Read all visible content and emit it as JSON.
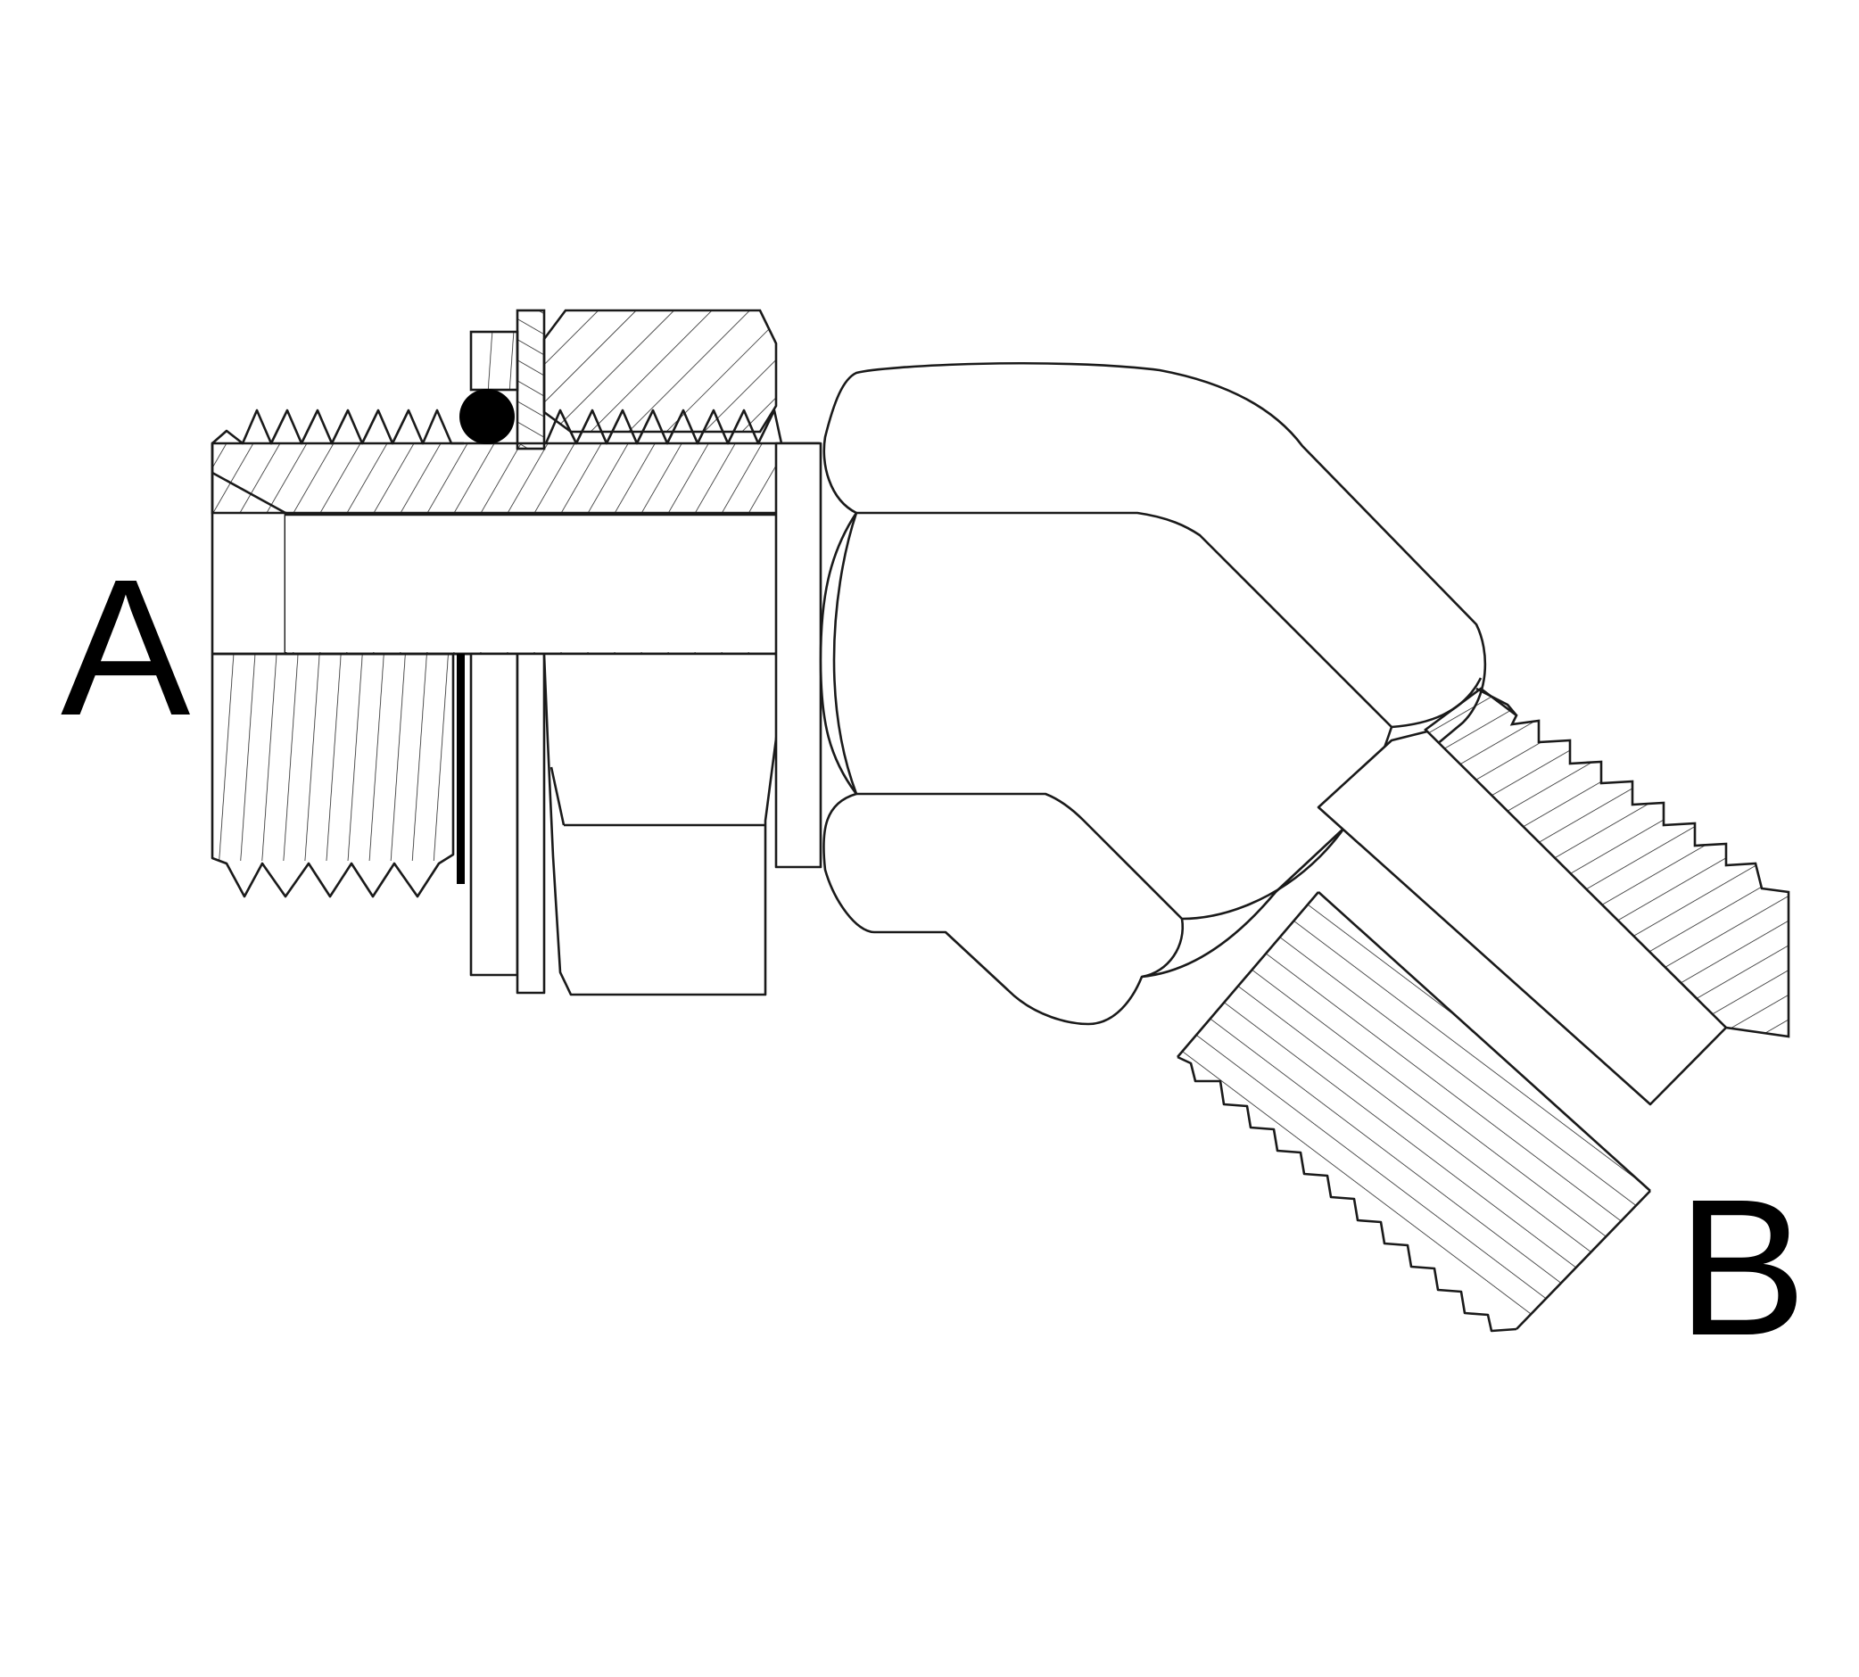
{
  "labels": {
    "port_a": "A",
    "port_b": "B"
  },
  "colors": {
    "line": "#1a1a1a",
    "oring": "#000000",
    "background": "#ffffff"
  }
}
